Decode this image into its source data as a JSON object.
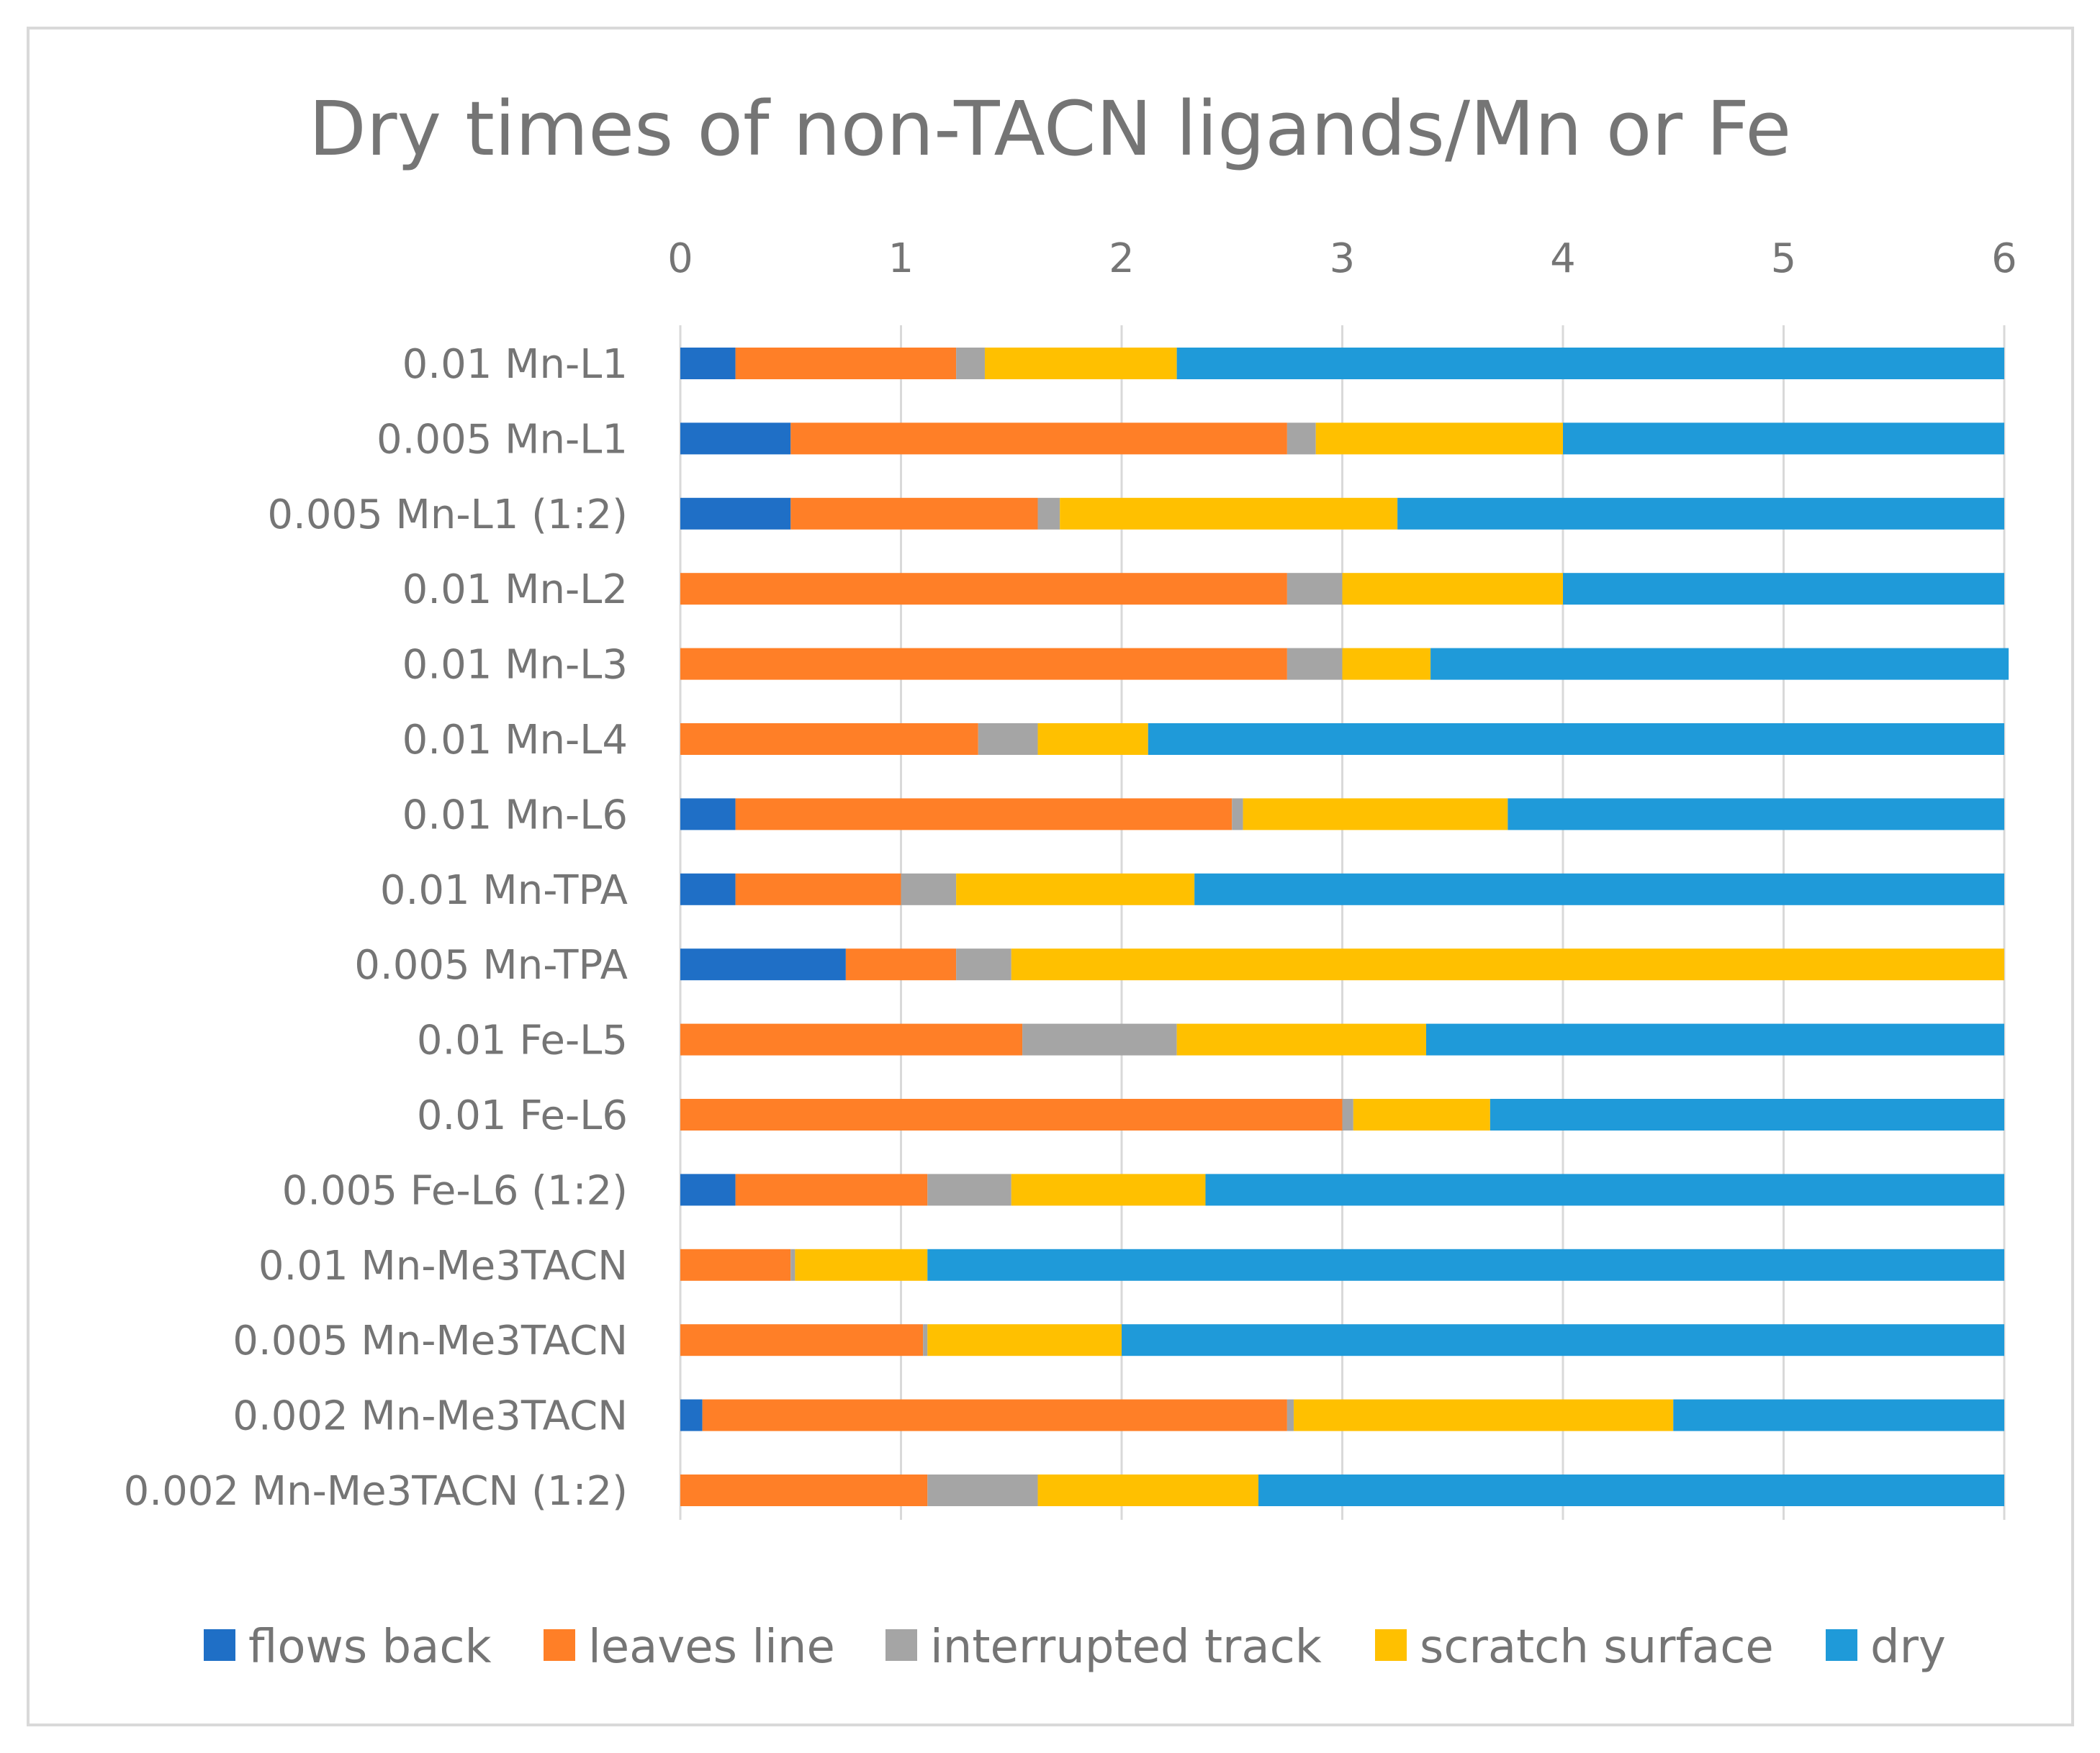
{
  "chart_data": {
    "type": "bar",
    "orientation": "horizontal",
    "stacked": true,
    "title": "Dry times of non-TACN ligands/Mn or Fe",
    "xlabel": "",
    "ylabel": "",
    "xlim": [
      0,
      6
    ],
    "x_ticks": [
      "0",
      "1",
      "2",
      "3",
      "4",
      "5",
      "6"
    ],
    "x_axis_position": "top",
    "grid": true,
    "legend_position": "bottom",
    "categories": [
      "0.01 Mn-L1",
      "0.005 Mn-L1",
      "0.005 Mn-L1 (1:2)",
      "0.01 Mn-L2",
      "0.01 Mn-L3",
      "0.01 Mn-L4",
      "0.01 Mn-L6",
      "0.01 Mn-TPA",
      "0.005 Mn-TPA",
      "0.01 Fe-L5",
      "0.01 Fe-L6",
      "0.005 Fe-L6 (1:2)",
      "0.01 Mn-Me3TACN",
      "0.005 Mn-Me3TACN",
      "0.002 Mn-Me3TACN",
      "0.002 Mn-Me3TACN (1:2)"
    ],
    "series": [
      {
        "name": "flows back",
        "color": "#1f6fc6",
        "values": [
          0.25,
          0.5,
          0.5,
          0,
          0,
          0,
          0.25,
          0.25,
          0.75,
          0,
          0,
          0.25,
          0,
          0,
          0.1,
          0
        ]
      },
      {
        "name": "leaves line",
        "color": "#ff7f27",
        "values": [
          1.0,
          2.25,
          1.12,
          2.75,
          2.75,
          1.35,
          2.25,
          0.75,
          0.5,
          1.55,
          3.0,
          0.87,
          0.5,
          1.1,
          2.65,
          1.12
        ]
      },
      {
        "name": "interrupted track",
        "color": "#a5a5a5",
        "values": [
          0.13,
          0.13,
          0.1,
          0.25,
          0.25,
          0.27,
          0.05,
          0.25,
          0.25,
          0.7,
          0.05,
          0.38,
          0.02,
          0.02,
          0.03,
          0.5
        ]
      },
      {
        "name": "scratch surface",
        "color": "#ffc000",
        "values": [
          0.87,
          1.12,
          1.53,
          1.0,
          0.4,
          0.5,
          1.2,
          1.08,
          4.5,
          1.13,
          0.62,
          0.88,
          0.6,
          0.88,
          1.72,
          1.0
        ]
      },
      {
        "name": "dry",
        "color": "#1f9ad9",
        "values": [
          3.75,
          2.0,
          2.75,
          2.0,
          2.62,
          3.88,
          2.25,
          3.67,
          0,
          2.62,
          2.33,
          3.62,
          4.88,
          4.0,
          1.5,
          3.38
        ]
      }
    ]
  }
}
